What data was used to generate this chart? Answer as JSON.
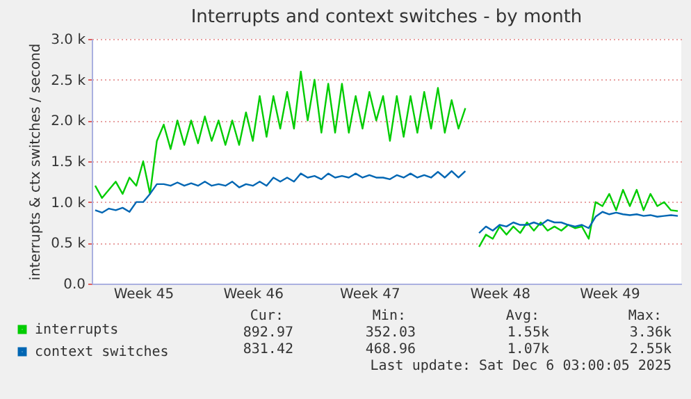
{
  "chart_data": {
    "type": "line",
    "title": "Interrupts and context switches - by month",
    "ylabel": "interrupts & ctx switches / second",
    "categories": [
      null,
      null,
      null,
      null,
      null,
      null,
      null,
      "Week 45",
      null,
      null,
      null,
      null,
      null,
      null,
      null,
      null,
      null,
      null,
      null,
      null,
      null,
      null,
      null,
      "Week 46",
      null,
      null,
      null,
      null,
      null,
      null,
      null,
      null,
      null,
      null,
      null,
      null,
      null,
      null,
      null,
      null,
      "Week 47",
      null,
      null,
      null,
      null,
      null,
      null,
      null,
      null,
      null,
      null,
      null,
      null,
      null,
      null,
      null,
      null,
      null,
      null,
      "Week 48",
      null,
      null,
      null,
      null,
      null,
      null,
      null,
      null,
      null,
      null,
      null,
      null,
      null,
      null,
      null,
      "Week 49",
      null,
      null,
      null,
      null,
      null,
      null,
      null,
      null,
      null,
      null
    ],
    "series": [
      {
        "name": "interrupts",
        "color": "#00cc00",
        "values": [
          1200,
          1050,
          1150,
          1250,
          1100,
          1300,
          1200,
          1500,
          1100,
          1750,
          1950,
          1650,
          2000,
          1700,
          2000,
          1720,
          2050,
          1750,
          2000,
          1700,
          2000,
          1700,
          2100,
          1750,
          2300,
          1800,
          2300,
          1900,
          2350,
          1900,
          2600,
          2000,
          2500,
          1850,
          2450,
          1850,
          2450,
          1850,
          2300,
          1900,
          2350,
          2000,
          2300,
          1750,
          2300,
          1800,
          2300,
          1850,
          2350,
          1900,
          2400,
          1850,
          2250,
          1900,
          2150,
          null,
          450,
          600,
          550,
          700,
          600,
          700,
          620,
          750,
          650,
          750,
          650,
          700,
          650,
          720,
          680,
          700,
          550,
          1000,
          950,
          1100,
          900,
          1150,
          950,
          1150,
          900,
          1100,
          950,
          1000,
          900,
          890
        ]
      },
      {
        "name": "context switches",
        "color": "#0066b3",
        "values": [
          900,
          870,
          920,
          900,
          930,
          880,
          1000,
          1000,
          1100,
          1220,
          1220,
          1200,
          1240,
          1200,
          1230,
          1200,
          1250,
          1200,
          1220,
          1200,
          1250,
          1180,
          1220,
          1200,
          1250,
          1200,
          1300,
          1250,
          1300,
          1250,
          1350,
          1300,
          1320,
          1280,
          1350,
          1300,
          1320,
          1300,
          1350,
          1300,
          1330,
          1300,
          1300,
          1280,
          1330,
          1300,
          1350,
          1300,
          1330,
          1300,
          1370,
          1300,
          1380,
          1300,
          1380,
          null,
          620,
          700,
          650,
          720,
          700,
          750,
          720,
          720,
          750,
          720,
          780,
          750,
          750,
          720,
          700,
          720,
          680,
          820,
          880,
          850,
          870,
          850,
          840,
          850,
          830,
          840,
          820,
          830,
          840,
          830
        ]
      }
    ],
    "ylim": [
      0,
      3000
    ],
    "yticks": [
      {
        "value": 0,
        "label": "0.0"
      },
      {
        "value": 500,
        "label": "0.5 k"
      },
      {
        "value": 1000,
        "label": "1.0 k"
      },
      {
        "value": 1500,
        "label": "1.5 k"
      },
      {
        "value": 2000,
        "label": "2.0 k"
      },
      {
        "value": 2500,
        "label": "2.5 k"
      },
      {
        "value": 3000,
        "label": "3.0 k"
      }
    ],
    "grid": "y",
    "legend": "bottom",
    "marker": "none",
    "line_style": "solid",
    "annotations": [
      "Cur:",
      "Min:",
      "Avg:",
      "Max:",
      "892.97",
      "352.03",
      "1.55k",
      "3.36k",
      "831.42",
      "468.96",
      "1.07k",
      "2.55k",
      "Last update: Sat Dec  6 03:00:05 2025"
    ]
  }
}
